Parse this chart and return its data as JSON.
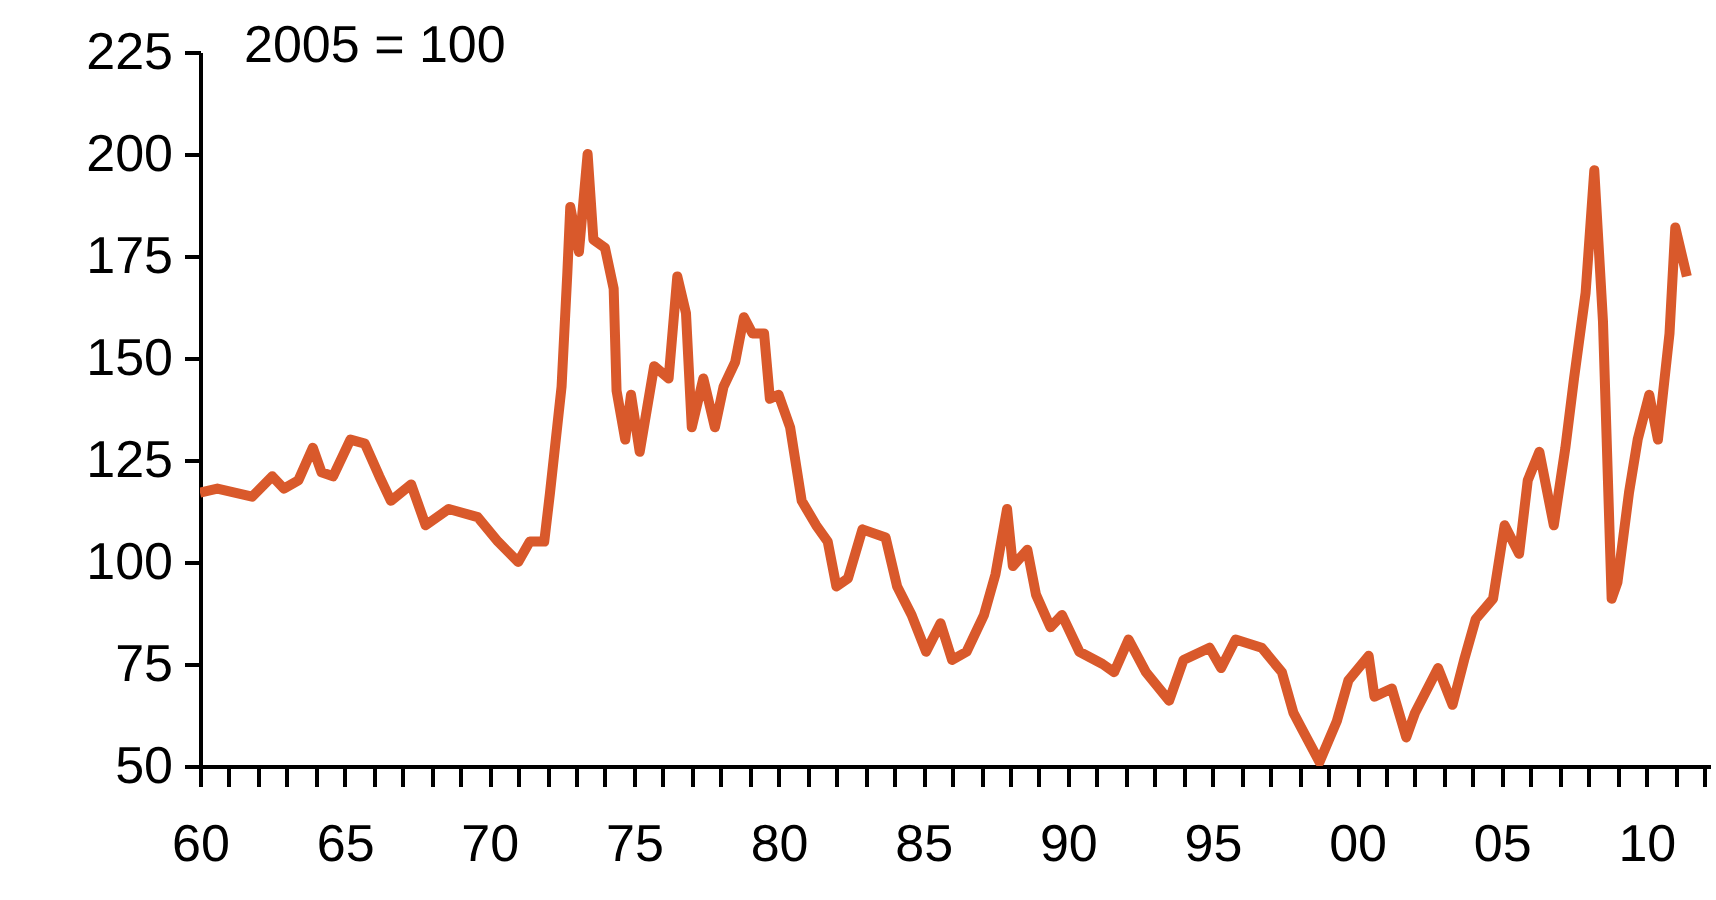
{
  "chart_data": {
    "type": "line",
    "annotations": [
      "2005 = 100"
    ],
    "x": [
      1960.0,
      1960.6,
      1961.8,
      1962.5,
      1962.9,
      1963.4,
      1963.9,
      1964.2,
      1964.6,
      1965.2,
      1965.7,
      1966.2,
      1966.6,
      1967.3,
      1967.8,
      1968.6,
      1969.6,
      1970.3,
      1971.0,
      1971.4,
      1971.9,
      1972.1,
      1972.5,
      1972.7,
      1972.8,
      1973.1,
      1973.4,
      1973.6,
      1974.0,
      1974.3,
      1974.4,
      1974.7,
      1974.9,
      1975.2,
      1975.7,
      1976.2,
      1976.5,
      1976.8,
      1977.0,
      1977.4,
      1977.8,
      1978.1,
      1978.5,
      1978.8,
      1979.1,
      1979.5,
      1979.7,
      1980.0,
      1980.4,
      1980.8,
      1981.3,
      1981.7,
      1982.0,
      1982.4,
      1982.9,
      1983.7,
      1984.1,
      1984.6,
      1985.1,
      1985.6,
      1986.0,
      1986.5,
      1987.1,
      1987.5,
      1987.9,
      1988.1,
      1988.6,
      1988.9,
      1989.4,
      1989.8,
      1990.4,
      1991.2,
      1991.6,
      1992.1,
      1992.7,
      1993.5,
      1994.0,
      1994.9,
      1995.3,
      1995.8,
      1996.7,
      1997.4,
      1997.8,
      1998.1,
      1998.7,
      1999.3,
      1999.7,
      2000.4,
      2000.6,
      2001.2,
      2001.7,
      2002.0,
      2002.8,
      2003.3,
      2003.7,
      2004.1,
      2004.7,
      2005.1,
      2005.6,
      2005.9,
      2006.3,
      2006.8,
      2007.2,
      2007.5,
      2007.9,
      2008.2,
      2008.5,
      2008.8,
      2009.0,
      2009.4,
      2009.7,
      2010.1,
      2010.4,
      2010.8,
      2011.0,
      2011.4
    ],
    "series": [
      {
        "color": "#d9592b",
        "values": [
          117,
          118,
          116,
          121,
          118,
          120,
          128,
          122,
          121,
          130,
          129,
          121,
          115,
          119,
          109,
          113,
          111,
          105,
          100,
          105,
          105,
          117,
          143,
          171,
          187,
          176,
          200,
          179,
          177,
          167,
          142,
          130,
          141,
          127,
          148,
          145,
          170,
          161,
          133,
          145,
          133,
          143,
          149,
          160,
          156,
          156,
          140,
          141,
          133,
          115,
          109,
          105,
          94,
          96,
          108,
          106,
          94,
          87,
          78,
          85,
          76,
          78,
          87,
          97,
          113,
          99,
          103,
          92,
          84,
          87,
          78,
          75,
          73,
          81,
          73,
          66,
          76,
          79,
          74,
          81,
          79,
          73,
          63,
          59,
          51,
          61,
          71,
          77,
          67,
          69,
          57,
          63,
          74,
          65,
          76,
          86,
          91,
          109,
          102,
          120,
          127,
          109,
          128,
          145,
          166,
          196,
          159,
          91,
          95,
          117,
          130,
          141,
          130,
          156,
          182,
          170
        ]
      }
    ],
    "xlim": [
      1960,
      2012.2
    ],
    "xticks": [
      {
        "value": 1960,
        "label": "60"
      },
      {
        "value": 1961,
        "label": null
      },
      {
        "value": 1962,
        "label": null
      },
      {
        "value": 1963,
        "label": null
      },
      {
        "value": 1964,
        "label": null
      },
      {
        "value": 1965,
        "label": "65"
      },
      {
        "value": 1966,
        "label": null
      },
      {
        "value": 1967,
        "label": null
      },
      {
        "value": 1968,
        "label": null
      },
      {
        "value": 1969,
        "label": null
      },
      {
        "value": 1970,
        "label": "70"
      },
      {
        "value": 1971,
        "label": null
      },
      {
        "value": 1972,
        "label": null
      },
      {
        "value": 1973,
        "label": null
      },
      {
        "value": 1974,
        "label": null
      },
      {
        "value": 1975,
        "label": "75"
      },
      {
        "value": 1976,
        "label": null
      },
      {
        "value": 1977,
        "label": null
      },
      {
        "value": 1978,
        "label": null
      },
      {
        "value": 1979,
        "label": null
      },
      {
        "value": 1980,
        "label": "80"
      },
      {
        "value": 1981,
        "label": null
      },
      {
        "value": 1982,
        "label": null
      },
      {
        "value": 1983,
        "label": null
      },
      {
        "value": 1984,
        "label": null
      },
      {
        "value": 1985,
        "label": "85"
      },
      {
        "value": 1986,
        "label": null
      },
      {
        "value": 1987,
        "label": null
      },
      {
        "value": 1988,
        "label": null
      },
      {
        "value": 1989,
        "label": null
      },
      {
        "value": 1990,
        "label": "90"
      },
      {
        "value": 1991,
        "label": null
      },
      {
        "value": 1992,
        "label": null
      },
      {
        "value": 1993,
        "label": null
      },
      {
        "value": 1994,
        "label": null
      },
      {
        "value": 1995,
        "label": "95"
      },
      {
        "value": 1996,
        "label": null
      },
      {
        "value": 1997,
        "label": null
      },
      {
        "value": 1998,
        "label": null
      },
      {
        "value": 1999,
        "label": null
      },
      {
        "value": 2000,
        "label": "00"
      },
      {
        "value": 2001,
        "label": null
      },
      {
        "value": 2002,
        "label": null
      },
      {
        "value": 2003,
        "label": null
      },
      {
        "value": 2004,
        "label": null
      },
      {
        "value": 2005,
        "label": "05"
      },
      {
        "value": 2006,
        "label": null
      },
      {
        "value": 2007,
        "label": null
      },
      {
        "value": 2008,
        "label": null
      },
      {
        "value": 2009,
        "label": null
      },
      {
        "value": 2010,
        "label": "10"
      },
      {
        "value": 2011,
        "label": null
      },
      {
        "value": 2012,
        "label": null
      }
    ],
    "ylim": [
      50,
      225
    ],
    "yticks": [
      50,
      75,
      100,
      125,
      150,
      175,
      200,
      225
    ],
    "grid": false,
    "marker": "none",
    "line_style": "solid"
  }
}
